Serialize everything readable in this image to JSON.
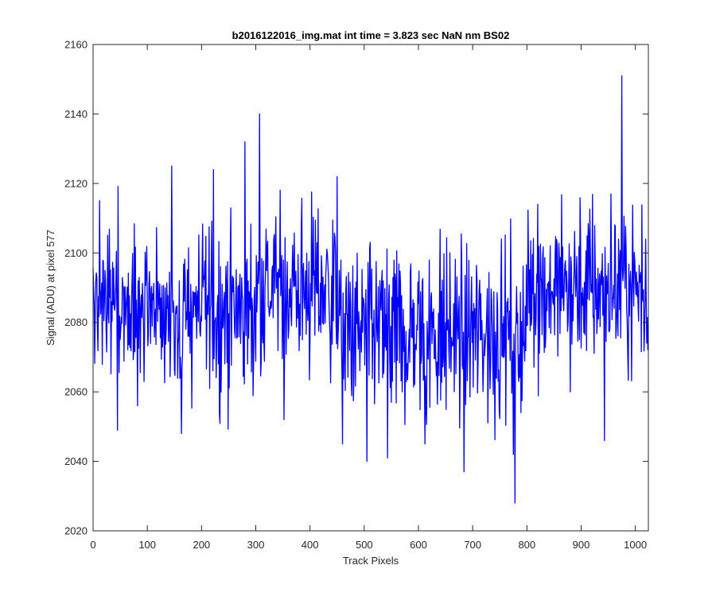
{
  "chart_data": {
    "type": "line",
    "title": "b2016122016_img.mat int time = 3.823 sec  NaN nm BS02",
    "xlabel": "Track Pixels",
    "ylabel": "Signal (ADU) at pixel 577",
    "xlim": [
      0,
      1024
    ],
    "ylim": [
      2020,
      2160
    ],
    "xticks": [
      0,
      100,
      200,
      300,
      400,
      500,
      600,
      700,
      800,
      900,
      1000
    ],
    "yticks": [
      2020,
      2040,
      2060,
      2080,
      2100,
      2120,
      2140,
      2160
    ],
    "grid": false,
    "line_color": "#0000ff",
    "n_points": 1024,
    "series_summary": {
      "mean_by_segment": [
        {
          "x_range": [
            0,
            300
          ],
          "mean": 2083
        },
        {
          "x_range": [
            300,
            450
          ],
          "mean": 2090
        },
        {
          "x_range": [
            450,
            800
          ],
          "mean": 2077
        },
        {
          "x_range": [
            800,
            1024
          ],
          "mean": 2090
        }
      ],
      "std": 12
    },
    "notable_points": [
      {
        "x": 1,
        "y": 2090
      },
      {
        "x": 12,
        "y": 2115
      },
      {
        "x": 45,
        "y": 2049
      },
      {
        "x": 145,
        "y": 2125
      },
      {
        "x": 163,
        "y": 2048
      },
      {
        "x": 222,
        "y": 2124
      },
      {
        "x": 280,
        "y": 2132
      },
      {
        "x": 307,
        "y": 2140
      },
      {
        "x": 352,
        "y": 2052
      },
      {
        "x": 450,
        "y": 2122
      },
      {
        "x": 460,
        "y": 2045
      },
      {
        "x": 505,
        "y": 2040
      },
      {
        "x": 543,
        "y": 2041
      },
      {
        "x": 570,
        "y": 2060
      },
      {
        "x": 612,
        "y": 2045
      },
      {
        "x": 614,
        "y": 2056
      },
      {
        "x": 684,
        "y": 2037
      },
      {
        "x": 775,
        "y": 2042
      },
      {
        "x": 778,
        "y": 2028
      },
      {
        "x": 820,
        "y": 2114
      },
      {
        "x": 880,
        "y": 2060
      },
      {
        "x": 943,
        "y": 2046
      },
      {
        "x": 955,
        "y": 2117
      },
      {
        "x": 975,
        "y": 2151
      },
      {
        "x": 1023,
        "y": 2072
      }
    ]
  }
}
